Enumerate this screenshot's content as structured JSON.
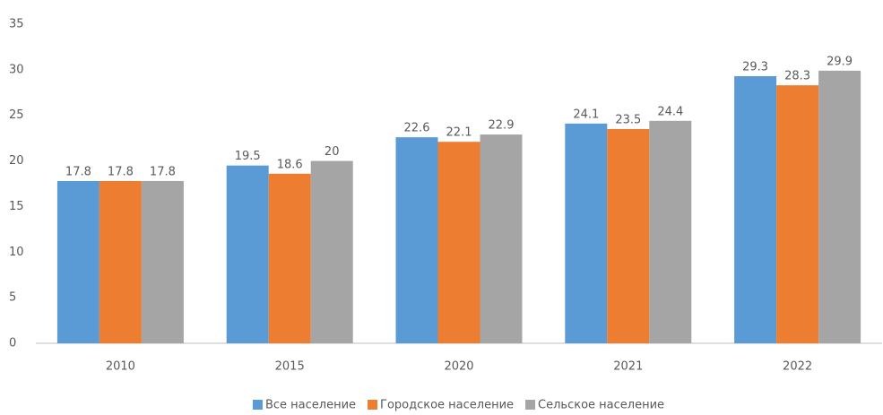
{
  "chart_data": {
    "type": "bar",
    "categories": [
      "2010",
      "2015",
      "2020",
      "2021",
      "2022"
    ],
    "series": [
      {
        "name": "Все население",
        "color": "#5b9bd5",
        "values": [
          17.8,
          19.5,
          22.6,
          24.1,
          29.3
        ]
      },
      {
        "name": "Городское население",
        "color": "#ed7d31",
        "values": [
          17.8,
          18.6,
          22.1,
          23.5,
          28.3
        ]
      },
      {
        "name": "Сельское население",
        "color": "#a5a5a5",
        "values": [
          17.8,
          20,
          22.9,
          24.4,
          29.9
        ]
      }
    ],
    "ylim": [
      0,
      35
    ],
    "yticks": [
      0,
      5,
      10,
      15,
      20,
      25,
      30,
      35
    ],
    "grid": false,
    "legend": "bottom"
  }
}
